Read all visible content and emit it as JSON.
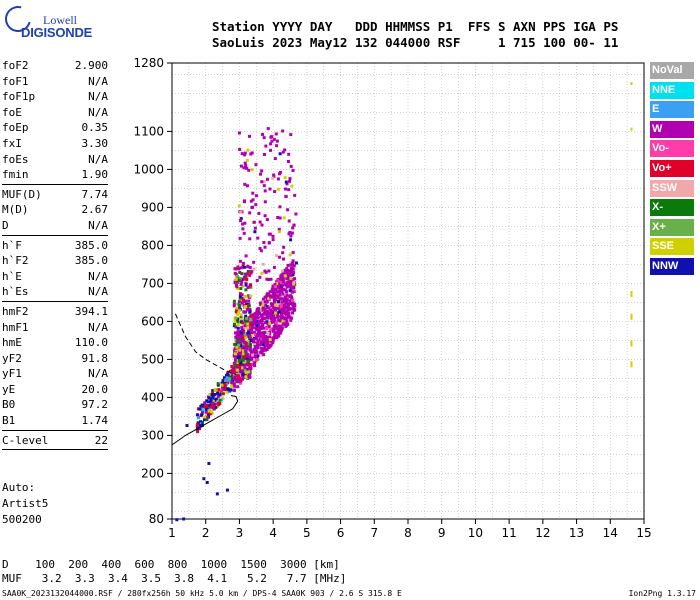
{
  "logo": {
    "line1": "Lowell",
    "line2": "DIGISONDE"
  },
  "header": {
    "line1": "Station YYYY DAY   DDD HHMMSS P1  FFS S AXN PPS IGA PS",
    "line2": "SaoLuis 2023 May12 132 044000 RSF     1 715 100 00- 11"
  },
  "params": [
    [
      {
        "k": "foF2",
        "v": "2.900"
      },
      {
        "k": "foF1",
        "v": "N/A"
      },
      {
        "k": "foF1p",
        "v": "N/A"
      },
      {
        "k": "foE",
        "v": "N/A"
      },
      {
        "k": "foEp",
        "v": "0.35"
      },
      {
        "k": "fxI",
        "v": "3.30"
      },
      {
        "k": "foEs",
        "v": "N/A"
      },
      {
        "k": "fmin",
        "v": "1.90"
      }
    ],
    [
      {
        "k": "MUF(D)",
        "v": "7.74"
      },
      {
        "k": "M(D)",
        "v": "2.67"
      },
      {
        "k": "D",
        "v": "N/A"
      }
    ],
    [
      {
        "k": "h`F",
        "v": "385.0"
      },
      {
        "k": "h`F2",
        "v": "385.0"
      },
      {
        "k": "h`E",
        "v": "N/A"
      },
      {
        "k": "h`Es",
        "v": "N/A"
      }
    ],
    [
      {
        "k": "hmF2",
        "v": "394.1"
      },
      {
        "k": "hmF1",
        "v": "N/A"
      },
      {
        "k": "hmE",
        "v": "110.0"
      },
      {
        "k": "yF2",
        "v": "91.8"
      },
      {
        "k": "yF1",
        "v": "N/A"
      },
      {
        "k": "yE",
        "v": "20.0"
      },
      {
        "k": "B0",
        "v": "97.2"
      },
      {
        "k": "B1",
        "v": "1.74"
      }
    ],
    [
      {
        "k": "C-level",
        "v": "22"
      }
    ]
  ],
  "auto": {
    "l1": "Auto:",
    "l2": "Artist5",
    "l3": "500200"
  },
  "dtable": {
    "d_row": "D    100  200  400  600  800  1000  1500  3000 [km]",
    "muf_row": "MUF   3.2  3.3  3.4  3.5  3.8  4.1   5.2   7.7 [MHz]"
  },
  "footer": "SAA0K_2023132044000.RSF / 280fx256h 50 kHz 5.0 km / DPS-4 SAA0K 903 / 2.6 S 315.8 E",
  "version": "Ion2Png 1.3.17",
  "legend": [
    {
      "label": "NoVal",
      "color": "#a8a8a8"
    },
    {
      "label": "NNE",
      "color": "#00e0f0"
    },
    {
      "label": "E",
      "color": "#3ca0f0"
    },
    {
      "label": "W",
      "color": "#b000b0"
    },
    {
      "label": "Vo-",
      "color": "#ff3caa"
    },
    {
      "label": "Vo+",
      "color": "#e0002a"
    },
    {
      "label": "SSW",
      "color": "#f0a8a8"
    },
    {
      "label": "X-",
      "color": "#0a7a0a"
    },
    {
      "label": "X+",
      "color": "#6ab04a"
    },
    {
      "label": "SSE",
      "color": "#d0d000"
    },
    {
      "label": "NNW",
      "color": "#1010b0"
    }
  ],
  "chart_data": {
    "type": "scatter",
    "title": "",
    "xlabel": "",
    "ylabel": "",
    "xlim": [
      1,
      15
    ],
    "ylim": [
      80,
      1280
    ],
    "x_ticks": [
      1,
      2,
      3,
      4,
      5,
      6,
      7,
      8,
      9,
      10,
      11,
      12,
      13,
      14,
      15
    ],
    "y_ticks": [
      80,
      200,
      300,
      400,
      500,
      600,
      700,
      800,
      900,
      1000,
      1100,
      1280
    ],
    "grid": true,
    "legend_position": "right",
    "series": [
      {
        "name": "W",
        "color": "#b000b0",
        "points": [
          [
            3.2,
            420
          ],
          [
            3.5,
            520
          ],
          [
            3.8,
            600
          ],
          [
            4.0,
            680
          ],
          [
            4.2,
            720
          ],
          [
            4.4,
            700
          ],
          [
            3.0,
            880
          ],
          [
            3.4,
            1000
          ],
          [
            4.0,
            1060
          ],
          [
            3.6,
            560
          ],
          [
            3.9,
            640
          ],
          [
            4.3,
            760
          ]
        ]
      },
      {
        "name": "NNW",
        "color": "#1010b0",
        "points": [
          [
            1.8,
            380
          ],
          [
            2.1,
            400
          ],
          [
            2.4,
            420
          ],
          [
            2.6,
            440
          ],
          [
            2.2,
            360
          ],
          [
            1.9,
            360
          ],
          [
            2.7,
            470
          ]
        ]
      },
      {
        "name": "Vo+",
        "color": "#e0002a",
        "points": [
          [
            2.7,
            440
          ],
          [
            2.9,
            460
          ],
          [
            3.0,
            470
          ],
          [
            2.8,
            480
          ]
        ]
      },
      {
        "name": "SSE",
        "color": "#d0d000",
        "points": [
          [
            2.3,
            390
          ],
          [
            2.5,
            410
          ],
          [
            2.9,
            560
          ],
          [
            3.1,
            700
          ],
          [
            14.6,
            1230
          ],
          [
            14.6,
            1110
          ],
          [
            14.6,
            680
          ],
          [
            14.6,
            620
          ],
          [
            14.6,
            550
          ],
          [
            14.6,
            495
          ]
        ]
      },
      {
        "name": "X-",
        "color": "#0a7a0a",
        "points": [
          [
            2.8,
            560
          ],
          [
            3.0,
            620
          ],
          [
            3.1,
            660
          ],
          [
            2.95,
            680
          ]
        ]
      }
    ],
    "curves": [
      {
        "name": "trace",
        "style": "solid",
        "x": [
          1.0,
          1.4,
          1.8,
          2.2,
          2.5,
          2.8,
          2.95,
          2.9,
          2.75
        ],
        "y": [
          275,
          300,
          320,
          340,
          355,
          370,
          390,
          402,
          405
        ]
      },
      {
        "name": "muf",
        "style": "dashed",
        "x": [
          1.1,
          1.4,
          1.7,
          2.0,
          2.3,
          2.6,
          2.9
        ],
        "y": [
          620,
          560,
          520,
          500,
          485,
          470,
          460
        ]
      }
    ]
  }
}
